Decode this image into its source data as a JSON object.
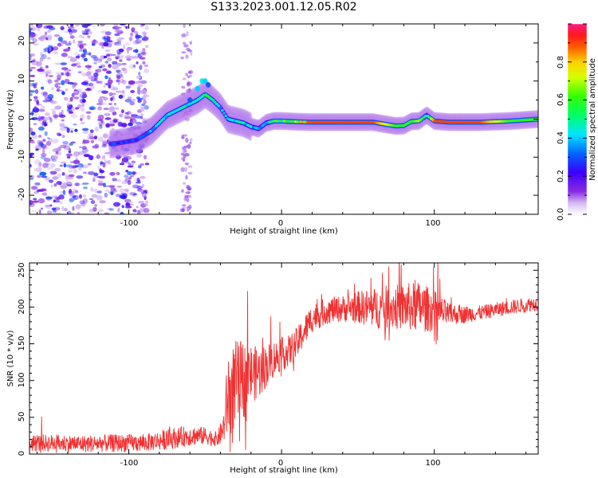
{
  "title": "S133.2023.001.12.05.R02",
  "spectrogram": {
    "xlabel": "Height of straight line (km)",
    "ylabel": "Frequency (Hz)",
    "xlim": [
      -165,
      168
    ],
    "ylim": [
      -25,
      25
    ],
    "xticks": [
      "-100",
      "0",
      "100"
    ],
    "yticks": [
      "20",
      "10",
      "0",
      "-10",
      "-20"
    ],
    "colorbar": {
      "label": "Normalized spectral amplitude",
      "ticks": [
        "0.0",
        "0.2",
        "0.4",
        "0.6",
        "0.8"
      ],
      "range": [
        0,
        1
      ]
    }
  },
  "snr": {
    "xlabel": "Height of straight line (km)",
    "ylabel": "SNR (10 * v/v)",
    "xticks": [
      "-100",
      "0",
      "100"
    ],
    "yticks": [
      "250",
      "200",
      "150",
      "100",
      "50",
      "0"
    ]
  },
  "chart_data": [
    {
      "type": "heatmap",
      "xlabel": "Height of straight line (km)",
      "ylabel": "Frequency (Hz)",
      "xlim": [
        -165,
        168
      ],
      "ylim": [
        -25,
        25
      ],
      "colorbar_label": "Normalized spectral amplitude",
      "colorbar_range": [
        0,
        1
      ],
      "ridge": {
        "x": [
          -110,
          -95,
          -85,
          -75,
          -65,
          -55,
          -50,
          -45,
          -40,
          -35,
          -30,
          -25,
          -20,
          -15,
          -10,
          -5,
          0,
          10,
          20,
          40,
          60,
          70,
          75,
          80,
          85,
          90,
          95,
          100,
          110,
          130,
          150,
          168
        ],
        "y": [
          -6.5,
          -5.5,
          -3,
          1,
          3,
          5,
          6.5,
          5,
          3,
          0,
          -0.5,
          -1,
          -2,
          -2.5,
          -1,
          -0.5,
          -0.5,
          -0.7,
          -0.8,
          -0.8,
          -0.8,
          -1.5,
          -1.8,
          -1.7,
          -0.6,
          -0.5,
          1,
          -0.5,
          -0.8,
          -0.8,
          -0.5,
          0
        ],
        "amplitude": [
          0.3,
          0.3,
          0.4,
          0.5,
          0.5,
          0.5,
          0.6,
          0.5,
          0.4,
          0.4,
          0.5,
          0.5,
          0.4,
          0.4,
          0.4,
          0.6,
          0.6,
          0.7,
          0.9,
          0.9,
          0.9,
          0.7,
          0.6,
          0.6,
          0.6,
          0.7,
          0.4,
          0.9,
          0.9,
          0.9,
          0.6,
          0.6
        ]
      },
      "secondary_arc": {
        "x": [
          -60,
          -55,
          -52,
          -50,
          -48
        ],
        "y": [
          5,
          8,
          10,
          10,
          9
        ],
        "amplitude": [
          0.3,
          0.4,
          0.45,
          0.4,
          0.3
        ]
      },
      "noise_region_x": [
        -165,
        -88
      ]
    },
    {
      "type": "line",
      "xlabel": "Height of straight line (km)",
      "ylabel": "SNR (10 * v/v)",
      "xlim": [
        -165,
        168
      ],
      "ylim": [
        0,
        260
      ],
      "series": [
        {
          "color": "#f03232",
          "x": [
            -165,
            -150,
            -130,
            -110,
            -90,
            -75,
            -60,
            -50,
            -42,
            -38,
            -35,
            -30,
            -25,
            -20,
            -15,
            -10,
            -5,
            0,
            5,
            10,
            20,
            30,
            40,
            50,
            60,
            70,
            80,
            90,
            100,
            110,
            120,
            130,
            140,
            150,
            160,
            168
          ],
          "y": [
            15,
            15,
            14,
            15,
            15,
            20,
            25,
            25,
            20,
            35,
            80,
            95,
            100,
            110,
            110,
            120,
            130,
            135,
            140,
            150,
            185,
            195,
            198,
            200,
            198,
            200,
            200,
            200,
            195,
            190,
            190,
            192,
            196,
            200,
            203,
            205
          ],
          "spread": [
            12,
            12,
            12,
            12,
            12,
            14,
            14,
            12,
            10,
            20,
            60,
            60,
            55,
            40,
            35,
            30,
            25,
            22,
            22,
            22,
            20,
            18,
            18,
            22,
            28,
            30,
            32,
            35,
            28,
            15,
            12,
            10,
            10,
            10,
            10,
            10
          ]
        }
      ]
    }
  ]
}
